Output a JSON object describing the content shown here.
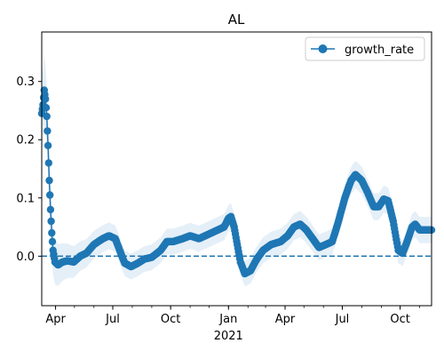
{
  "chart_data": {
    "type": "line",
    "title": "AL",
    "xlabel": "",
    "ylabel": "",
    "x_range": [
      "2020-03-10",
      "2021-11-20"
    ],
    "ylim": [
      -0.085,
      0.385
    ],
    "yticks": [
      0.0,
      0.1,
      0.2,
      0.3
    ],
    "ytick_labels": [
      "0.0",
      "0.1",
      "0.2",
      "0.3"
    ],
    "xticks": [
      {
        "date": "2020-04-01",
        "label": "Apr",
        "sublabel": ""
      },
      {
        "date": "2020-07-01",
        "label": "Jul",
        "sublabel": ""
      },
      {
        "date": "2020-10-01",
        "label": "Oct",
        "sublabel": ""
      },
      {
        "date": "2021-01-01",
        "label": "Jan",
        "sublabel": "2021"
      },
      {
        "date": "2021-04-01",
        "label": "Apr",
        "sublabel": ""
      },
      {
        "date": "2021-07-01",
        "label": "Jul",
        "sublabel": ""
      },
      {
        "date": "2021-10-01",
        "label": "Oct",
        "sublabel": ""
      }
    ],
    "grid": false,
    "legend": {
      "position": "top-right",
      "entries": [
        "growth_rate"
      ]
    },
    "reference_line": {
      "y": 0.0,
      "style": "dashed"
    },
    "colors": {
      "line": "#1f77b4",
      "band": "#c6dbef"
    },
    "series": [
      {
        "name": "growth_rate",
        "marker": "circle",
        "points": [
          [
            "2020-03-10",
            0.245
          ],
          [
            "2020-03-12",
            0.26
          ],
          [
            "2020-03-14",
            0.285
          ],
          [
            "2020-03-16",
            0.27
          ],
          [
            "2020-03-18",
            0.24
          ],
          [
            "2020-03-20",
            0.19
          ],
          [
            "2020-03-22",
            0.13
          ],
          [
            "2020-03-24",
            0.08
          ],
          [
            "2020-03-26",
            0.04
          ],
          [
            "2020-03-28",
            0.01
          ],
          [
            "2020-03-31",
            -0.01
          ],
          [
            "2020-04-05",
            -0.015
          ],
          [
            "2020-04-12",
            -0.01
          ],
          [
            "2020-04-20",
            -0.008
          ],
          [
            "2020-04-30",
            -0.01
          ],
          [
            "2020-05-10",
            0.0
          ],
          [
            "2020-05-20",
            0.005
          ],
          [
            "2020-06-01",
            0.02
          ],
          [
            "2020-06-15",
            0.03
          ],
          [
            "2020-06-25",
            0.035
          ],
          [
            "2020-07-05",
            0.03
          ],
          [
            "2020-07-12",
            0.01
          ],
          [
            "2020-07-20",
            -0.012
          ],
          [
            "2020-07-30",
            -0.018
          ],
          [
            "2020-08-10",
            -0.012
          ],
          [
            "2020-08-20",
            -0.005
          ],
          [
            "2020-09-01",
            -0.002
          ],
          [
            "2020-09-15",
            0.01
          ],
          [
            "2020-09-25",
            0.025
          ],
          [
            "2020-10-05",
            0.025
          ],
          [
            "2020-10-20",
            0.03
          ],
          [
            "2020-11-01",
            0.035
          ],
          [
            "2020-11-15",
            0.03
          ],
          [
            "2020-11-25",
            0.035
          ],
          [
            "2020-12-05",
            0.04
          ],
          [
            "2020-12-15",
            0.045
          ],
          [
            "2020-12-25",
            0.05
          ],
          [
            "2021-01-01",
            0.065
          ],
          [
            "2021-01-05",
            0.068
          ],
          [
            "2021-01-10",
            0.05
          ],
          [
            "2021-01-15",
            0.02
          ],
          [
            "2021-01-20",
            -0.01
          ],
          [
            "2021-01-27",
            -0.03
          ],
          [
            "2021-02-05",
            -0.025
          ],
          [
            "2021-02-15",
            -0.005
          ],
          [
            "2021-02-25",
            0.01
          ],
          [
            "2021-03-10",
            0.02
          ],
          [
            "2021-03-25",
            0.025
          ],
          [
            "2021-04-05",
            0.035
          ],
          [
            "2021-04-15",
            0.05
          ],
          [
            "2021-04-25",
            0.055
          ],
          [
            "2021-05-05",
            0.045
          ],
          [
            "2021-05-15",
            0.03
          ],
          [
            "2021-05-25",
            0.015
          ],
          [
            "2021-06-05",
            0.02
          ],
          [
            "2021-06-15",
            0.025
          ],
          [
            "2021-06-25",
            0.06
          ],
          [
            "2021-07-05",
            0.1
          ],
          [
            "2021-07-15",
            0.13
          ],
          [
            "2021-07-22",
            0.14
          ],
          [
            "2021-08-01",
            0.13
          ],
          [
            "2021-08-10",
            0.11
          ],
          [
            "2021-08-20",
            0.085
          ],
          [
            "2021-08-28",
            0.085
          ],
          [
            "2021-09-05",
            0.098
          ],
          [
            "2021-09-12",
            0.095
          ],
          [
            "2021-09-20",
            0.06
          ],
          [
            "2021-09-28",
            0.01
          ],
          [
            "2021-10-05",
            0.005
          ],
          [
            "2021-10-12",
            0.025
          ],
          [
            "2021-10-20",
            0.05
          ],
          [
            "2021-10-25",
            0.055
          ],
          [
            "2021-11-01",
            0.045
          ],
          [
            "2021-11-10",
            0.045
          ],
          [
            "2021-11-20",
            0.045
          ]
        ]
      }
    ]
  }
}
